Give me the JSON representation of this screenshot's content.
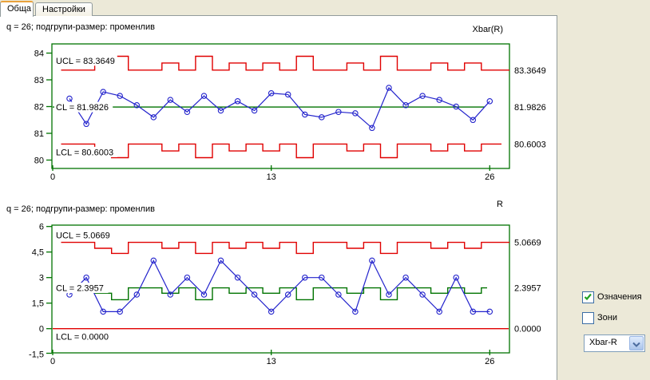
{
  "tabs": [
    {
      "label": "Обща",
      "active": true
    },
    {
      "label": "Настройки",
      "active": false
    }
  ],
  "controls": {
    "legend_checkbox": {
      "label": "Означения",
      "checked": true
    },
    "zones_checkbox": {
      "label": "Зони",
      "checked": false
    },
    "chart_type_dropdown": {
      "value": "Xbar-R"
    }
  },
  "colors": {
    "background": "#ece9d8",
    "page": "#ffffff",
    "series": "#2222cc",
    "limits": "#e00000",
    "center": "#007300",
    "frame": "#007300",
    "check": "#21a121"
  },
  "chart_data": [
    {
      "type": "line",
      "title": "q = 26; подгрупи-размер: променлив",
      "corner_label": "Xbar(R)",
      "series_name": "Xbar",
      "x": [
        1,
        2,
        3,
        4,
        5,
        6,
        7,
        8,
        9,
        10,
        11,
        12,
        13,
        14,
        15,
        16,
        17,
        18,
        19,
        20,
        21,
        22,
        23,
        24,
        25,
        26
      ],
      "values": [
        82.3,
        81.35,
        82.55,
        82.4,
        82.05,
        81.6,
        82.25,
        81.8,
        82.4,
        81.85,
        82.2,
        81.85,
        82.5,
        82.45,
        81.7,
        81.6,
        81.8,
        81.75,
        81.2,
        82.7,
        82.05,
        82.4,
        82.25,
        82.0,
        81.5,
        82.2
      ],
      "center_line": {
        "label": "CL = 81.9826",
        "stepped": false,
        "value": 81.9826
      },
      "ucl": {
        "label": "UCL = 83.3649",
        "stepped": true,
        "final_value": 83.3649,
        "values": [
          83.3649,
          83.3649,
          83.63,
          83.88,
          83.3649,
          83.3649,
          83.63,
          83.3649,
          83.88,
          83.3649,
          83.63,
          83.3649,
          83.63,
          83.3649,
          83.88,
          83.3649,
          83.3649,
          83.63,
          83.3649,
          83.88,
          83.3649,
          83.3649,
          83.63,
          83.3649,
          83.63,
          83.3649
        ]
      },
      "lcl": {
        "label": "LCL = 80.6003",
        "stepped": true,
        "final_value": 80.6003,
        "values": [
          80.6003,
          80.6003,
          80.34,
          80.09,
          80.6003,
          80.6003,
          80.34,
          80.6003,
          80.09,
          80.6003,
          80.34,
          80.6003,
          80.34,
          80.6003,
          80.09,
          80.6003,
          80.6003,
          80.34,
          80.6003,
          80.09,
          80.6003,
          80.6003,
          80.34,
          80.6003,
          80.34,
          80.6003
        ]
      },
      "right_labels": [
        {
          "text": "83.3649",
          "value": 83.3649
        },
        {
          "text": "81.9826",
          "value": 81.9826
        },
        {
          "text": "80.6003",
          "value": 80.6003
        }
      ],
      "ylim": [
        79.68,
        84.34
      ],
      "yticks": [
        {
          "value": 84,
          "label": "84"
        },
        {
          "value": 83,
          "label": "83"
        },
        {
          "value": 82,
          "label": "82"
        },
        {
          "value": 81,
          "label": "81"
        },
        {
          "value": 80,
          "label": "80"
        }
      ],
      "xticks": [
        {
          "value": 0,
          "label": "0"
        },
        {
          "value": 13,
          "label": "13"
        },
        {
          "value": 26,
          "label": "26"
        }
      ],
      "grid": false,
      "legend": "none"
    },
    {
      "type": "line",
      "title": "q = 26; подгрупи-размер: променлив",
      "corner_label": "R",
      "series_name": "R",
      "x": [
        1,
        2,
        3,
        4,
        5,
        6,
        7,
        8,
        9,
        10,
        11,
        12,
        13,
        14,
        15,
        16,
        17,
        18,
        19,
        20,
        21,
        22,
        23,
        24,
        25,
        26
      ],
      "values": [
        2,
        3,
        1,
        1,
        2,
        4,
        2,
        3,
        2,
        4,
        3,
        2,
        1,
        2,
        3,
        3,
        2,
        1,
        4,
        2,
        3,
        2,
        1,
        3,
        1,
        1
      ],
      "center_line": {
        "label": "CL = 2.3957",
        "stepped": true,
        "final_value": 2.3957,
        "values": [
          2.3957,
          2.3957,
          2.08,
          1.7,
          2.3957,
          2.3957,
          2.08,
          2.3957,
          1.7,
          2.3957,
          2.08,
          2.3957,
          2.08,
          2.3957,
          1.7,
          2.3957,
          2.3957,
          2.08,
          2.3957,
          1.7,
          2.3957,
          2.3957,
          2.08,
          2.3957,
          2.08,
          2.3957
        ]
      },
      "ucl": {
        "label": "UCL = 5.0669",
        "stepped": true,
        "final_value": 5.0669,
        "values": [
          5.0669,
          5.0669,
          4.72,
          4.42,
          5.0669,
          5.0669,
          4.72,
          5.0669,
          4.42,
          5.0669,
          4.72,
          5.0669,
          4.72,
          5.0669,
          4.42,
          5.0669,
          5.0669,
          4.72,
          5.0669,
          4.42,
          5.0669,
          5.0669,
          4.72,
          5.0669,
          4.72,
          5.0669
        ]
      },
      "lcl": {
        "label": "LCL = 0.0000",
        "stepped": false,
        "value": 0
      },
      "right_labels": [
        {
          "text": "5.0669",
          "value": 5.0669
        },
        {
          "text": "2.3957",
          "value": 2.3957
        },
        {
          "text": "0.0000",
          "value": 0
        }
      ],
      "ylim": [
        -1.5,
        6
      ],
      "yticks": [
        {
          "value": 6,
          "label": "6"
        },
        {
          "value": 4.5,
          "label": "4,5"
        },
        {
          "value": 3,
          "label": "3"
        },
        {
          "value": 1.5,
          "label": "1,5"
        },
        {
          "value": 0,
          "label": "0"
        },
        {
          "value": -1.5,
          "label": "-1,5"
        }
      ],
      "xticks": [
        {
          "value": 0,
          "label": "0"
        },
        {
          "value": 13,
          "label": "13"
        },
        {
          "value": 26,
          "label": "26"
        }
      ],
      "grid": false,
      "legend": "none"
    }
  ]
}
